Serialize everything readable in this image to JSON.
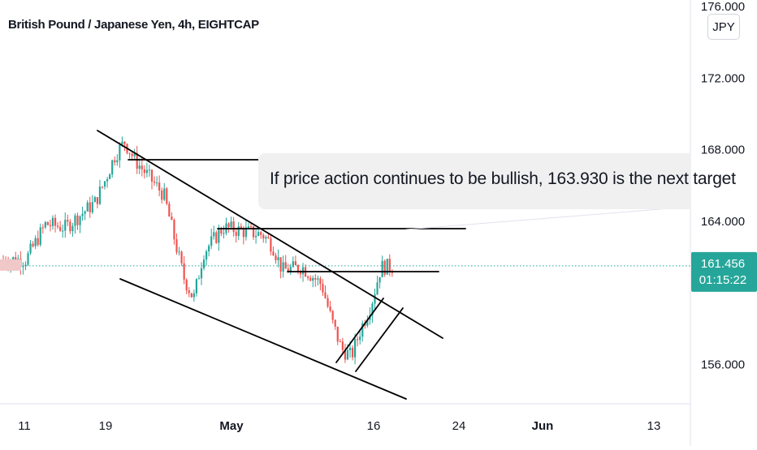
{
  "chart_title": "British Pound / Japanese Yen, 4h, EIGHTCAP",
  "currency_badge": "JPY",
  "annotation": "If price action continues to be bullish, 163.930 is the next target",
  "colors": {
    "up": "#26a69a",
    "down": "#ef5350",
    "price_line": "#26a69a",
    "trendline": "#000000",
    "axis_text": "#131722"
  },
  "chart_data": {
    "type": "candlestick",
    "x_axis_labels": [
      "11",
      "19",
      "May",
      "16",
      "24",
      "Jun",
      "13"
    ],
    "y_axis_labels": [
      "176.000",
      "172.000",
      "168.000",
      "164.000",
      "156.000"
    ],
    "ylim": [
      154.5,
      176.5
    ],
    "last_price": "161.456",
    "countdown": "01:15:22",
    "approx_close_path": [
      {
        "t": "Apr 11",
        "close": 161.8
      },
      {
        "t": "Apr 13",
        "close": 163.8
      },
      {
        "t": "Apr 15",
        "close": 163.6
      },
      {
        "t": "Apr 18",
        "close": 165.0
      },
      {
        "t": "Apr 19",
        "close": 166.2
      },
      {
        "t": "Apr 20",
        "close": 167.6
      },
      {
        "t": "Apr 21",
        "close": 168.4
      },
      {
        "t": "Apr 22",
        "close": 167.4
      },
      {
        "t": "Apr 25",
        "close": 165.4
      },
      {
        "t": "Apr 27",
        "close": 160.8
      },
      {
        "t": "Apr 28",
        "close": 159.6
      },
      {
        "t": "Apr 29",
        "close": 162.2
      },
      {
        "t": "May 1",
        "close": 163.6
      },
      {
        "t": "May 3",
        "close": 163.4
      },
      {
        "t": "May 5",
        "close": 163.2
      },
      {
        "t": "May 6",
        "close": 162.6
      },
      {
        "t": "May 7",
        "close": 161.2
      },
      {
        "t": "May 9",
        "close": 161.4
      },
      {
        "t": "May 11",
        "close": 160.4
      },
      {
        "t": "May 12",
        "close": 158.4
      },
      {
        "t": "May 13",
        "close": 156.8
      },
      {
        "t": "May 14",
        "close": 156.4
      },
      {
        "t": "May 15",
        "close": 158.0
      },
      {
        "t": "May 16",
        "close": 159.3
      },
      {
        "t": "May 17",
        "close": 161.4
      }
    ]
  }
}
